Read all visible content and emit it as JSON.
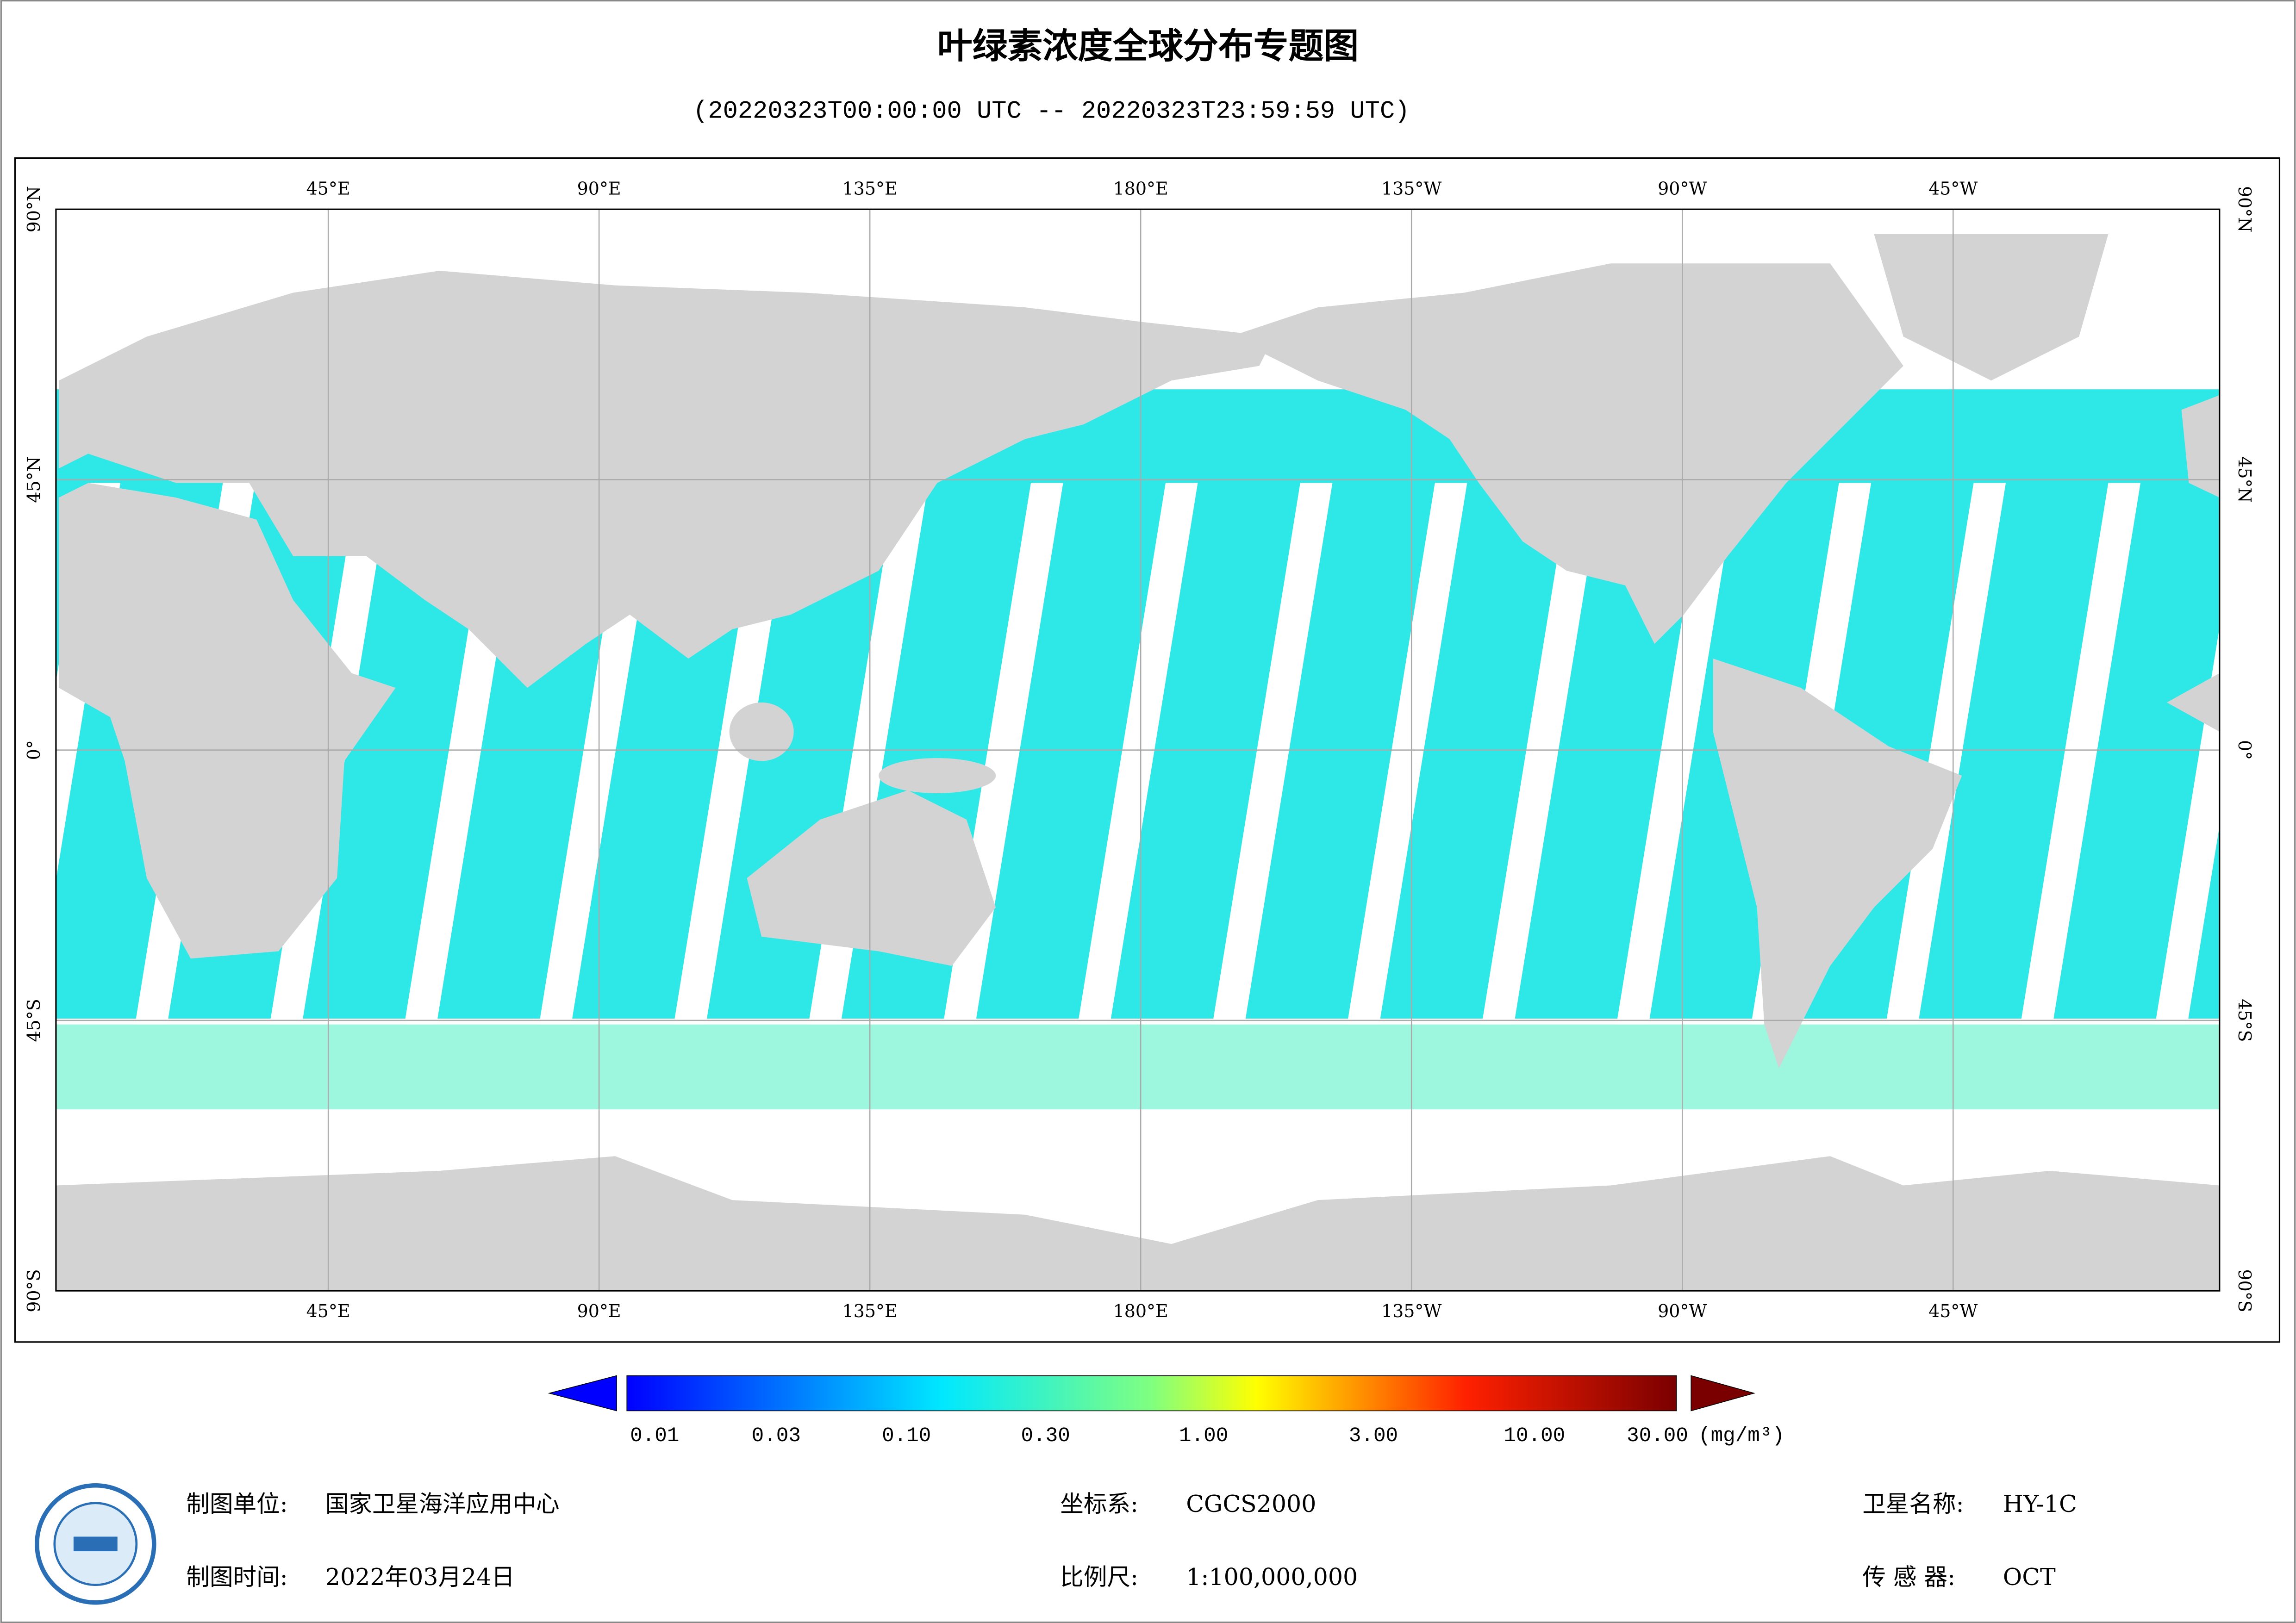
{
  "header": {
    "title": "叶绿素浓度全球分布专题图",
    "subtitle": "(20220323T00:00:00 UTC -- 20220323T23:59:59 UTC)"
  },
  "map": {
    "lon_labels": [
      "45°E",
      "90°E",
      "135°E",
      "180°E",
      "135°W",
      "90°W",
      "45°W"
    ],
    "lat_labels": [
      "90°N",
      "45°N",
      "0°",
      "45°S",
      "90°S"
    ]
  },
  "colorbar": {
    "labels": [
      "0.01",
      "0.03",
      "0.10",
      "0.30",
      "1.00",
      "3.00",
      "10.00",
      "30.00"
    ],
    "unit": "(mg/m³)"
  },
  "footer": {
    "unit_label": "制图单位:",
    "unit_value": "国家卫星海洋应用中心",
    "date_label": "制图时间:",
    "date_value": "2022年03月24日",
    "crs_label": "坐标系:",
    "crs_value": "CGCS2000",
    "scale_label": "比例尺:",
    "scale_value": "1:100,000,000",
    "sat_label": "卫星名称:",
    "sat_value": "HY-1C",
    "sensor_label": "传 感 器:",
    "sensor_value": "OCT"
  }
}
